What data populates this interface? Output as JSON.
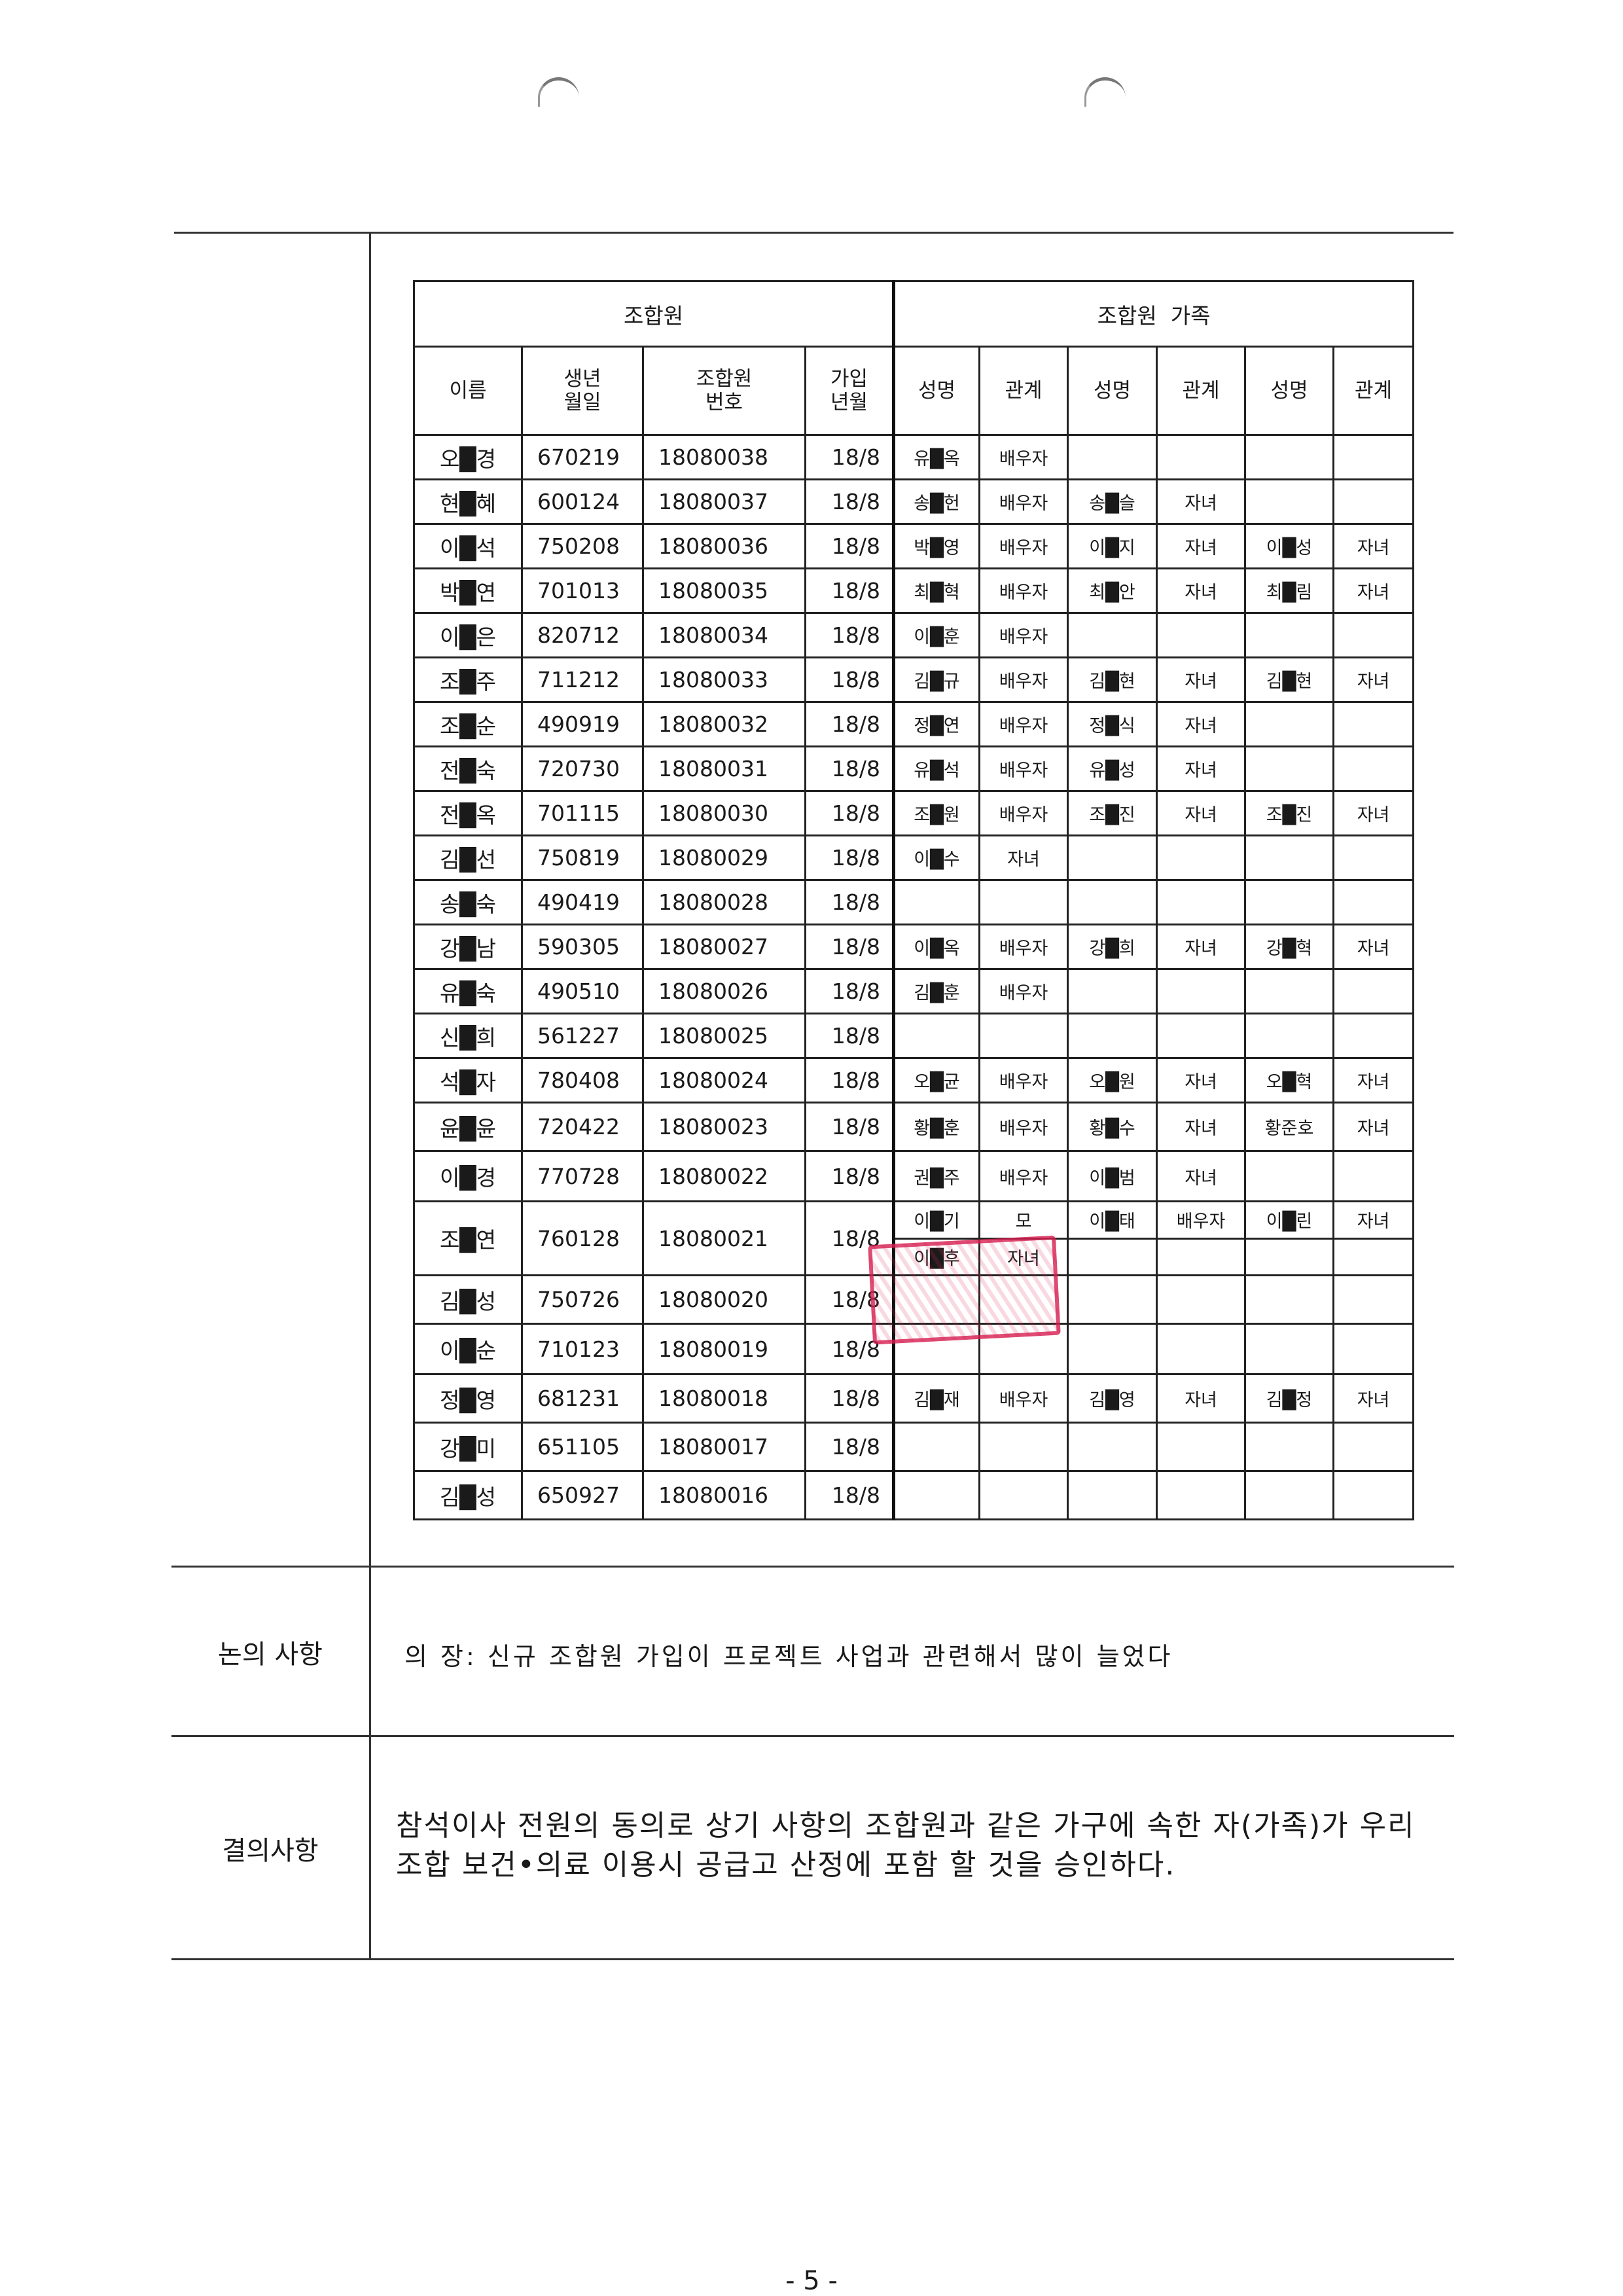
{
  "table": {
    "group_member": "조합원",
    "group_family": "조합원  가족",
    "headers": {
      "name": "이름",
      "birth": "생년\n월일",
      "member_no": "조합원\n번호",
      "join": "가입\n년월",
      "fam_name": "성명",
      "fam_rel": "관계"
    },
    "rows": [
      {
        "name": "오█경",
        "birth": "670219",
        "no": "18080038",
        "join": "18/8",
        "family": [
          [
            "유█옥",
            "배우자"
          ]
        ]
      },
      {
        "name": "현█혜",
        "birth": "600124",
        "no": "18080037",
        "join": "18/8",
        "family": [
          [
            "송█헌",
            "배우자"
          ],
          [
            "송█슬",
            "자녀"
          ]
        ]
      },
      {
        "name": "이█석",
        "birth": "750208",
        "no": "18080036",
        "join": "18/8",
        "family": [
          [
            "박█영",
            "배우자"
          ],
          [
            "이█지",
            "자녀"
          ],
          [
            "이█성",
            "자녀"
          ]
        ]
      },
      {
        "name": "박█연",
        "birth": "701013",
        "no": "18080035",
        "join": "18/8",
        "family": [
          [
            "최█혁",
            "배우자"
          ],
          [
            "최█안",
            "자녀"
          ],
          [
            "최█림",
            "자녀"
          ]
        ]
      },
      {
        "name": "이█은",
        "birth": "820712",
        "no": "18080034",
        "join": "18/8",
        "family": [
          [
            "이█훈",
            "배우자"
          ]
        ]
      },
      {
        "name": "조█주",
        "birth": "711212",
        "no": "18080033",
        "join": "18/8",
        "family": [
          [
            "김█규",
            "배우자"
          ],
          [
            "김█현",
            "자녀"
          ],
          [
            "김█현",
            "자녀"
          ]
        ]
      },
      {
        "name": "조█순",
        "birth": "490919",
        "no": "18080032",
        "join": "18/8",
        "family": [
          [
            "정█연",
            "배우자"
          ],
          [
            "정█식",
            "자녀"
          ]
        ]
      },
      {
        "name": "전█숙",
        "birth": "720730",
        "no": "18080031",
        "join": "18/8",
        "family": [
          [
            "유█석",
            "배우자"
          ],
          [
            "유█성",
            "자녀"
          ]
        ]
      },
      {
        "name": "전█옥",
        "birth": "701115",
        "no": "18080030",
        "join": "18/8",
        "family": [
          [
            "조█원",
            "배우자"
          ],
          [
            "조█진",
            "자녀"
          ],
          [
            "조█진",
            "자녀"
          ]
        ]
      },
      {
        "name": "김█선",
        "birth": "750819",
        "no": "18080029",
        "join": "18/8",
        "family": [
          [
            "이█수",
            "자녀"
          ]
        ]
      },
      {
        "name": "송█숙",
        "birth": "490419",
        "no": "18080028",
        "join": "18/8",
        "family": []
      },
      {
        "name": "강█남",
        "birth": "590305",
        "no": "18080027",
        "join": "18/8",
        "family": [
          [
            "이█옥",
            "배우자"
          ],
          [
            "강█희",
            "자녀"
          ],
          [
            "강█혁",
            "자녀"
          ]
        ]
      },
      {
        "name": "유█숙",
        "birth": "490510",
        "no": "18080026",
        "join": "18/8",
        "family": [
          [
            "김█훈",
            "배우자"
          ]
        ]
      },
      {
        "name": "신█희",
        "birth": "561227",
        "no": "18080025",
        "join": "18/8",
        "family": []
      },
      {
        "name": "석█자",
        "birth": "780408",
        "no": "18080024",
        "join": "18/8",
        "family": [
          [
            "오█균",
            "배우자"
          ],
          [
            "오█원",
            "자녀"
          ],
          [
            "오█혁",
            "자녀"
          ]
        ]
      },
      {
        "name": "윤█윤",
        "birth": "720422",
        "no": "18080023",
        "join": "18/8",
        "family": [
          [
            "황█훈",
            "배우자"
          ],
          [
            "황█수",
            "자녀"
          ],
          [
            "황준호",
            "자녀"
          ]
        ]
      },
      {
        "name": "이█경",
        "birth": "770728",
        "no": "18080022",
        "join": "18/8",
        "family": [
          [
            "권█주",
            "배우자"
          ],
          [
            "이█범",
            "자녀"
          ]
        ]
      },
      {
        "name": "조█연",
        "birth": "760128",
        "no": "18080021",
        "join": "18/8",
        "family": [
          [
            "이█기",
            "모"
          ],
          [
            "이█태",
            "배우자"
          ],
          [
            "이█린",
            "자녀"
          ]
        ],
        "family_extra": [
          [
            "이█후",
            "자녀"
          ]
        ]
      },
      {
        "name": "김█성",
        "birth": "750726",
        "no": "18080020",
        "join": "18/8",
        "family": []
      },
      {
        "name": "이█순",
        "birth": "710123",
        "no": "18080019",
        "join": "18/8",
        "family": []
      },
      {
        "name": "정█영",
        "birth": "681231",
        "no": "18080018",
        "join": "18/8",
        "family": [
          [
            "김█재",
            "배우자"
          ],
          [
            "김█영",
            "자녀"
          ],
          [
            "김█정",
            "자녀"
          ]
        ]
      },
      {
        "name": "강█미",
        "birth": "651105",
        "no": "18080017",
        "join": "18/8",
        "family": []
      },
      {
        "name": "김█성",
        "birth": "650927",
        "no": "18080016",
        "join": "18/8",
        "family": []
      }
    ]
  },
  "discussion": {
    "label": "논의 사항",
    "text": "의 장: 신규 조합원 가입이 프로젝트 사업과 관련해서 많이 늘었다"
  },
  "resolution": {
    "label": "결의사항",
    "text": "참석이사 전원의 동의로 상기 사항의 조합원과 같은 가구에 속한 자(가족)가 우리 조합 보건•의료 이용시 공급고 산정에 포함 할 것을 승인하다."
  },
  "page_number": "- 5 -",
  "colors": {
    "stamp": "#d61e50",
    "ink": "#1a1a1a"
  }
}
